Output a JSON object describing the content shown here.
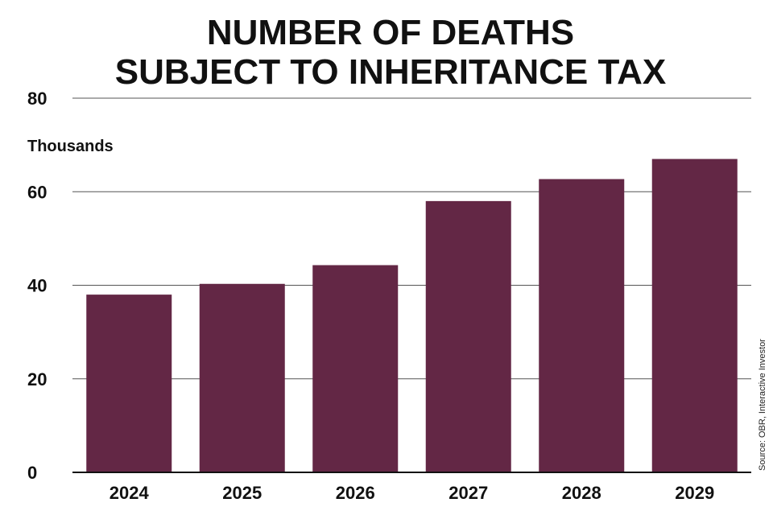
{
  "chart_data": {
    "type": "bar",
    "title": [
      "NUMBER OF DEATHS",
      "SUBJECT TO INHERITANCE TAX"
    ],
    "ylabel": "Thousands",
    "categories": [
      "2024",
      "2025",
      "2026",
      "2027",
      "2028",
      "2029"
    ],
    "values": [
      38,
      40.3,
      44.3,
      58,
      62.7,
      67
    ],
    "ylim": [
      0,
      80
    ],
    "yticks": [
      0,
      20,
      40,
      60,
      80
    ],
    "grid": true,
    "bar_color": "#632745",
    "source": "Source: OBR, Interactive Investor"
  }
}
